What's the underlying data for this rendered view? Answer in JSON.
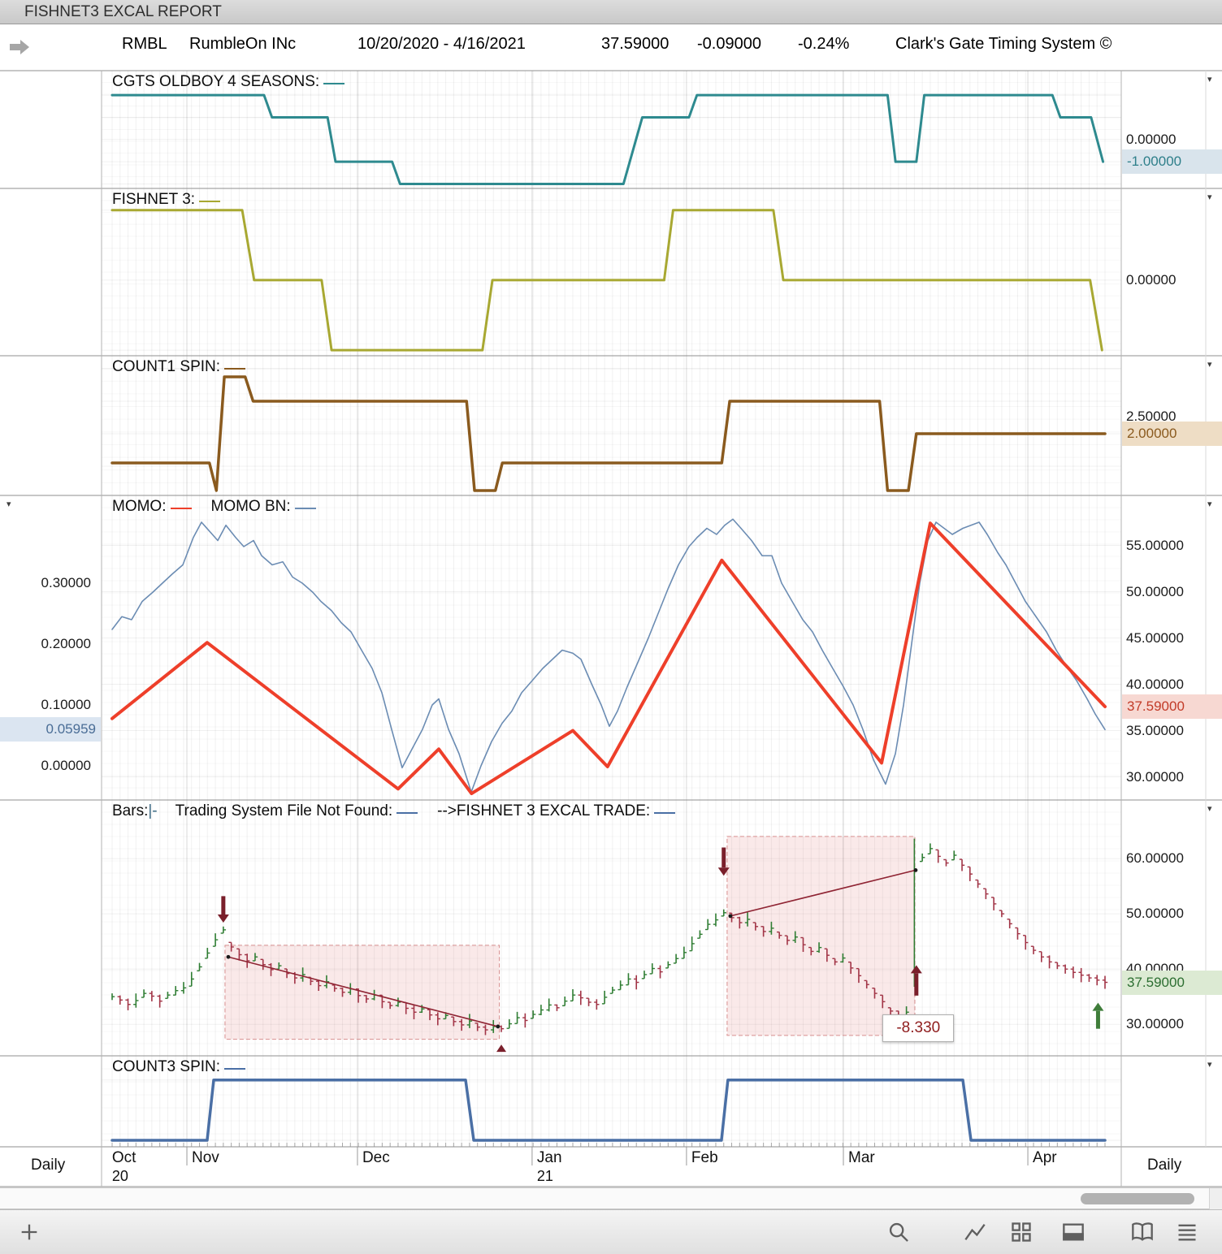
{
  "window": {
    "title": "FISHNET3 EXCAL REPORT"
  },
  "header": {
    "symbol": "RMBL",
    "company": "RumbleOn INc",
    "date_range": "10/20/2020 - 4/16/2021",
    "last": "37.59000",
    "change": "-0.09000",
    "change_pct": "-0.24%",
    "system": "Clark's Gate Timing System ©"
  },
  "titles": {
    "p1": "CGTS OLDBOY 4 SEASONS:",
    "p2": "FISHNET 3:",
    "p3": "COUNT1 SPIN:",
    "p4a": "MOMO:",
    "p4b": "MOMO BN:",
    "p5a": "Bars:",
    "p5glyph": "|-",
    "p5b": "Trading System File Not Found:",
    "p5c": "-->FISHNET 3 EXCAL TRADE:",
    "p6": "COUNT3 SPIN:"
  },
  "axis": {
    "timeframe_left": "Daily",
    "timeframe_right": "Daily"
  },
  "colors": {
    "teal": "#2e8a8f",
    "olive": "#a8a832",
    "brown": "#8a5a1e",
    "red": "#ee3f2a",
    "blue": "#6b8cb3",
    "steel": "#4a6fa5",
    "glyph": "#3d6b85",
    "up": "#2f7d33",
    "down": "#a13446",
    "trend": "#8f2433",
    "arrow_dark": "#7a1f2b",
    "arrow_green": "#3f7d3a"
  },
  "chart_data": {
    "type": "multi-panel-timeseries",
    "timeframe": "Daily",
    "months": [
      {
        "label": "Oct",
        "sub": "20",
        "t": -0.005
      },
      {
        "label": "Nov",
        "t": 0.0753
      },
      {
        "label": "Dec",
        "t": 0.2471
      },
      {
        "label": "Jan",
        "sub": "21",
        "t": 0.423
      },
      {
        "label": "Feb",
        "t": 0.5785
      },
      {
        "label": "Mar",
        "t": 0.7365
      },
      {
        "label": "Apr",
        "t": 0.9223
      }
    ],
    "hl_styles": {
      "teal": {
        "bg": "#d9e4ec",
        "fg": "#2e7f8a"
      },
      "tan": {
        "bg": "#eeddc5",
        "fg": "#8a5a1e"
      },
      "red": {
        "bg": "#f7d8d2",
        "fg": "#c23b28"
      },
      "blue": {
        "bg": "#dbe5f1",
        "fg": "#4a6d96"
      },
      "green": {
        "bg": "#dcead3",
        "fg": "#2c6e31"
      }
    },
    "panels": [
      {
        "name": "cgts-o4s",
        "type": "step",
        "ylim": [
          -2.2,
          3.1
        ],
        "grid_v": [
          2,
          1,
          0,
          -1,
          -2
        ],
        "series": [
          {
            "name": "CGTS OLDBOY 4 SEASONS",
            "color": "#2e8a8f",
            "width": 3,
            "t": [
              0,
              0.153,
              0.161,
              0.217,
              0.225,
              0.282,
              0.29,
              0.515,
              0.534,
              0.581,
              0.589,
              0.781,
              0.789,
              0.81,
              0.818,
              0.947,
              0.955,
              0.986,
              0.998
            ],
            "v": [
              2,
              2,
              1,
              1,
              -1,
              -1,
              -2,
              -2,
              1,
              1,
              2,
              2,
              -1,
              -1,
              2,
              2,
              1,
              1,
              -1
            ]
          }
        ],
        "axis_right": [
          {
            "text": "0.00000",
            "v": 0
          },
          {
            "text": "-1.00000",
            "v": -1,
            "hl": "teal"
          }
        ]
      },
      {
        "name": "fishnet3",
        "type": "step",
        "ylim": [
          -1.08,
          1.31
        ],
        "grid_v": [
          1,
          0,
          -1
        ],
        "series": [
          {
            "name": "FISHNET 3",
            "color": "#a8a832",
            "width": 3,
            "t": [
              0,
              0.131,
              0.143,
              0.211,
              0.221,
              0.373,
              0.383,
              0.556,
              0.565,
              0.666,
              0.676,
              0.985,
              0.997
            ],
            "v": [
              1,
              1,
              0,
              0,
              -1,
              -1,
              0,
              0,
              1,
              1,
              0,
              0,
              -1
            ]
          }
        ],
        "axis_right": [
          {
            "text": "0.00000",
            "v": 0
          }
        ]
      },
      {
        "name": "count1-spin",
        "type": "step",
        "ylim": [
          0.1,
          4.4
        ],
        "grid_v": [
          1,
          2,
          3,
          4
        ],
        "series": [
          {
            "name": "COUNT1 SPIN",
            "color": "#8a5a1e",
            "width": 3.5,
            "t": [
              0,
              0.098,
              0.105,
              0.113,
              0.134,
              0.142,
              0.357,
              0.365,
              0.386,
              0.393,
              0.614,
              0.622,
              0.773,
              0.781,
              0.802,
              0.81,
              1.0
            ],
            "v": [
              1.1,
              1.1,
              0.25,
              3.75,
              3.75,
              3.0,
              3.0,
              0.25,
              0.25,
              1.1,
              1.1,
              3.0,
              3.0,
              0.25,
              0.25,
              2.0,
              2.0
            ]
          }
        ],
        "axis_right": [
          {
            "text": "2.50000",
            "v": 2.52
          },
          {
            "text": "2.00000",
            "v": 2.0,
            "hl": "tan"
          }
        ]
      },
      {
        "name": "momo",
        "type": "line",
        "ylim_left": [
          -0.056,
          0.444
        ],
        "ylim_right": [
          27.5,
          60.4
        ],
        "grid_v": [
          30,
          35,
          40,
          45,
          50,
          55
        ],
        "series": [
          {
            "name": "MOMO BN",
            "axis": "left",
            "color": "#6b8cb3",
            "width": 1.6,
            "t": [
              0,
              0.0098,
              0.0196,
              0.0303,
              0.0409,
              0.0507,
              0.0606,
              0.0712,
              0.0818,
              0.09,
              0.0982,
              0.1064,
              0.1146,
              0.1244,
              0.1326,
              0.1424,
              0.1506,
              0.1612,
              0.1719,
              0.1817,
              0.1915,
              0.2021,
              0.2103,
              0.2209,
              0.2308,
              0.2406,
              0.2512,
              0.2619,
              0.2717,
              0.2815,
              0.2921,
              0.3028,
              0.3126,
              0.3224,
              0.329,
              0.3388,
              0.3494,
              0.3617,
              0.3715,
              0.3822,
              0.3928,
              0.4026,
              0.4124,
              0.4231,
              0.4337,
              0.4435,
              0.4533,
              0.464,
              0.4722,
              0.4828,
              0.4926,
              0.5008,
              0.509,
              0.5188,
              0.5295,
              0.5401,
              0.5499,
              0.5597,
              0.5704,
              0.581,
              0.5892,
              0.599,
              0.6088,
              0.617,
              0.6252,
              0.6334,
              0.644,
              0.6547,
              0.6645,
              0.6743,
              0.6849,
              0.6956,
              0.7054,
              0.7152,
              0.7258,
              0.7365,
              0.7463,
              0.7561,
              0.7668,
              0.779,
              0.7889,
              0.7971,
              0.8052,
              0.8134,
              0.8216,
              0.8298,
              0.838,
              0.8462,
              0.8568,
              0.865,
              0.8732,
              0.8814,
              0.892,
              0.9002,
              0.91,
              0.9198,
              0.9305,
              0.9411,
              0.9509,
              0.9607,
              0.9714,
              0.982,
              0.9902,
              1
            ],
            "v": [
              0.224,
              0.245,
              0.24,
              0.27,
              0.285,
              0.3,
              0.315,
              0.33,
              0.375,
              0.4,
              0.385,
              0.37,
              0.395,
              0.375,
              0.36,
              0.37,
              0.345,
              0.33,
              0.335,
              0.31,
              0.3,
              0.285,
              0.27,
              0.255,
              0.235,
              0.22,
              0.19,
              0.16,
              0.12,
              0.06,
              -0.003,
              0.03,
              0.06,
              0.1,
              0.11,
              0.06,
              0.02,
              -0.043,
              0,
              0.04,
              0.07,
              0.09,
              0.12,
              0.14,
              0.16,
              0.175,
              0.19,
              0.185,
              0.175,
              0.135,
              0.1,
              0.065,
              0.09,
              0.13,
              0.17,
              0.21,
              0.25,
              0.29,
              0.33,
              0.36,
              0.375,
              0.39,
              0.38,
              0.395,
              0.405,
              0.39,
              0.37,
              0.345,
              0.345,
              0.3,
              0.27,
              0.24,
              0.22,
              0.19,
              0.16,
              0.13,
              0.1,
              0.06,
              0.01,
              -0.03,
              0.02,
              0.1,
              0.2,
              0.3,
              0.37,
              0.4,
              0.39,
              0.38,
              0.39,
              0.395,
              0.4,
              0.38,
              0.35,
              0.33,
              0.3,
              0.27,
              0.245,
              0.22,
              0.19,
              0.165,
              0.14,
              0.11,
              0.085,
              0.0596
            ]
          },
          {
            "name": "MOMO",
            "axis": "right",
            "color": "#ee3f2a",
            "width": 4,
            "t": [
              0,
              0.0957,
              0.288,
              0.329,
              0.362,
              0.464,
              0.499,
              0.614,
              0.775,
              0.824,
              1.0
            ],
            "v": [
              36.3,
              44.5,
              28.7,
              33.0,
              28.2,
              35.0,
              31.1,
              53.4,
              31.5,
              57.4,
              37.59
            ]
          }
        ],
        "axis_left": [
          {
            "text": "0.30000",
            "v": 0.3
          },
          {
            "text": "0.20000",
            "v": 0.2
          },
          {
            "text": "0.10000",
            "v": 0.1
          },
          {
            "text": "0.05959",
            "v": 0.0596,
            "hl": "blue"
          },
          {
            "text": "0.00000",
            "v": 0.0
          }
        ],
        "axis_right": [
          {
            "text": "55.00000",
            "v": 55
          },
          {
            "text": "50.00000",
            "v": 50
          },
          {
            "text": "45.00000",
            "v": 45
          },
          {
            "text": "40.00000",
            "v": 40
          },
          {
            "text": "37.59000",
            "v": 37.59,
            "hl": "red"
          },
          {
            "text": "35.00000",
            "v": 35
          },
          {
            "text": "30.00000",
            "v": 30
          }
        ]
      },
      {
        "name": "price-bars",
        "type": "bars",
        "ylim": [
          24.3,
          70.6
        ],
        "grid_v": [
          30,
          40,
          50,
          60
        ],
        "up_color": "#2f7d33",
        "down_color": "#a13446",
        "closes": [
          35.0,
          34.4,
          33.6,
          34.3,
          35.6,
          35.1,
          34.2,
          35.3,
          36.1,
          36.6,
          38.2,
          40.4,
          42.9,
          45.3,
          47.1,
          44.0,
          42.6,
          41.5,
          42.2,
          40.8,
          39.9,
          40.6,
          39.2,
          38.4,
          39.0,
          37.8,
          37.0,
          37.7,
          36.5,
          35.8,
          36.4,
          35.2,
          34.6,
          35.3,
          34.1,
          33.4,
          34.0,
          32.9,
          32.2,
          32.8,
          31.7,
          31.0,
          31.6,
          30.5,
          29.9,
          30.6,
          29.5,
          29.0,
          29.6,
          29.2,
          30.1,
          31.2,
          30.7,
          31.8,
          32.6,
          33.5,
          33.0,
          34.2,
          35.3,
          34.8,
          34.0,
          33.6,
          34.9,
          36.2,
          37.1,
          38.2,
          37.6,
          39.0,
          40.1,
          39.5,
          40.8,
          41.9,
          43.0,
          44.6,
          46.3,
          48.1,
          48.9,
          50.2,
          49.3,
          48.4,
          49.0,
          47.7,
          46.8,
          47.4,
          46.1,
          45.2,
          45.8,
          44.4,
          43.2,
          43.9,
          42.5,
          41.3,
          42.0,
          40.2,
          38.8,
          37.2,
          35.6,
          34.1,
          32.4,
          31.6,
          32.2,
          58.0,
          60.2,
          61.8,
          60.4,
          59.2,
          60.6,
          58.8,
          57.2,
          55.4,
          53.6,
          51.8,
          50.0,
          48.2,
          46.4,
          44.8,
          43.4,
          42.2,
          41.3,
          40.6,
          40.0,
          39.4,
          38.9,
          38.4,
          38.0,
          37.6
        ],
        "spike": {
          "index": 101,
          "high": 63.6,
          "low": 36.8
        },
        "boxes": [
          {
            "t0": 0.1137,
            "t1": 0.39,
            "p_top": 44.3,
            "p_bot": 27.3
          },
          {
            "t0": 0.6194,
            "t1": 0.8085,
            "p_top": 64.0,
            "p_bot": 28.0
          }
        ],
        "trendlines": [
          {
            "t0": 0.117,
            "p0": 42.2,
            "t1": 0.3886,
            "p1": 29.6
          },
          {
            "t0": 0.6227,
            "p0": 49.6,
            "t1": 0.8093,
            "p1": 57.9
          }
        ],
        "arrows": [
          {
            "t": 0.112,
            "dir": "down",
            "tip": 48.4,
            "tail": 53.2,
            "color": "#7a1f2b",
            "name": "sell-arrow-1"
          },
          {
            "t": 0.616,
            "dir": "down",
            "tip": 56.9,
            "tail": 62.0,
            "color": "#7a1f2b",
            "name": "sell-arrow-2"
          },
          {
            "t": 0.81,
            "dir": "up",
            "tip": 40.7,
            "tail": 35.2,
            "color": "#7a1f2b",
            "name": "cover-arrow"
          },
          {
            "t": 0.993,
            "dir": "up",
            "tip": 33.9,
            "tail": 29.2,
            "color": "#3f7d3a",
            "name": "buy-arrow"
          }
        ],
        "markers": [
          {
            "t": 0.392,
            "p": 25.6,
            "shape": "tri-up",
            "color": "#7a1f2b"
          }
        ],
        "annotation": {
          "text": "-8.330",
          "t": 0.776,
          "p": 31.8
        },
        "axis_right": [
          {
            "text": "60.00000",
            "v": 60
          },
          {
            "text": "50.00000",
            "v": 50
          },
          {
            "text": "40.00000",
            "v": 40
          },
          {
            "text": "37.59000",
            "v": 37.59,
            "hl": "green"
          },
          {
            "text": "30.00000",
            "v": 30
          }
        ]
      },
      {
        "name": "count3-spin",
        "type": "step",
        "ylim": [
          -0.107,
          1.4
        ],
        "grid_v": [
          0,
          1
        ],
        "series": [
          {
            "name": "COUNT3 SPIN",
            "color": "#4a6fa5",
            "width": 3.5,
            "t": [
              0,
              0.0957,
              0.1023,
              0.356,
              0.3642,
              0.6137,
              0.6202,
              0.8568,
              0.865,
              1.0
            ],
            "v": [
              0,
              0,
              1,
              1,
              0,
              0,
              1,
              1,
              0,
              0
            ]
          }
        ],
        "axis_right": []
      }
    ]
  }
}
